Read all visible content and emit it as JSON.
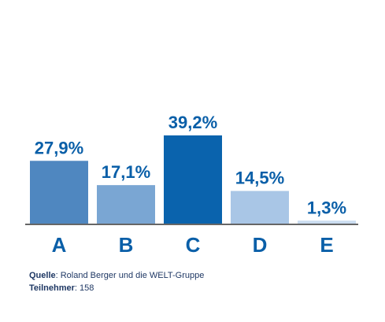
{
  "chart_data": {
    "type": "bar",
    "categories": [
      "A",
      "B",
      "C",
      "D",
      "E"
    ],
    "values": [
      27.9,
      17.1,
      39.2,
      14.5,
      1.3
    ],
    "value_labels": [
      "27,9%",
      "17,1%",
      "39,2%",
      "14,5%",
      "1,3%"
    ],
    "bar_colors": [
      "#4f87c0",
      "#7aa6d3",
      "#0a63ad",
      "#a9c6e6",
      "#cadcf0"
    ],
    "label_color": "#0a5fa8",
    "axis_color": "#333333",
    "ylim": [
      0,
      40
    ],
    "title": "",
    "xlabel": "",
    "ylabel": "",
    "grid": false
  },
  "footer": {
    "source_label": "Quelle",
    "source_text": ": Roland Berger und die WELT-Gruppe",
    "participants_label": "Teilnehmer",
    "participants_text": ": 158"
  }
}
